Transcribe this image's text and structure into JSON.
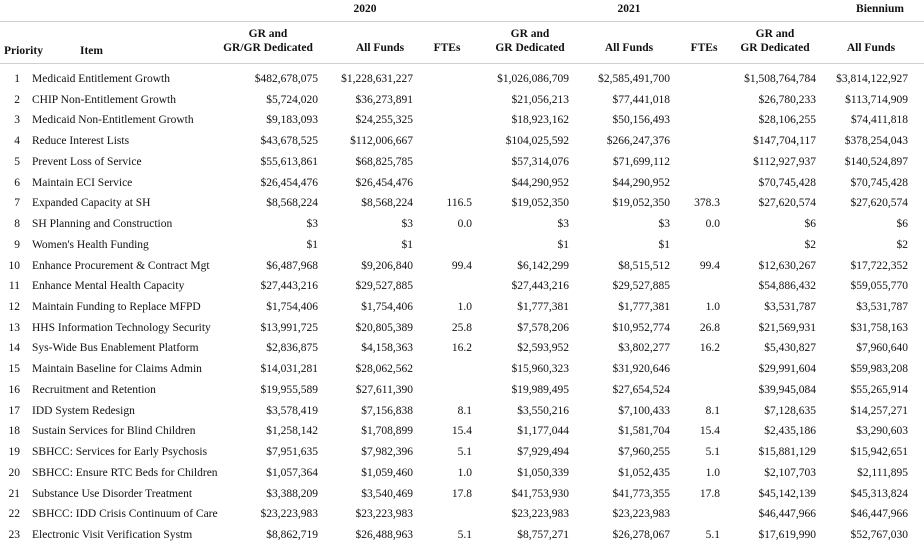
{
  "header": {
    "groups": [
      "2020",
      "2021",
      "Biennium"
    ],
    "priority": "Priority",
    "item": "Item",
    "columns": [
      [
        "GR and",
        "GR/GR Dedicated"
      ],
      [
        "All Funds"
      ],
      [
        "FTEs"
      ],
      [
        "GR and",
        "GR Dedicated"
      ],
      [
        "All Funds"
      ],
      [
        "FTEs"
      ],
      [
        "GR and",
        "GR Dedicated"
      ],
      [
        "All Funds"
      ]
    ]
  },
  "rows": [
    {
      "priority": 1,
      "item": "Medicaid Entitlement Growth",
      "values": [
        "$482,678,075",
        "$1,228,631,227",
        null,
        "$1,026,086,709",
        "$2,585,491,700",
        null,
        "$1,508,764,784",
        "$3,814,122,927"
      ]
    },
    {
      "priority": 2,
      "item": "CHIP Non-Entitlement Growth",
      "values": [
        "$5,724,020",
        "$36,273,891",
        null,
        "$21,056,213",
        "$77,441,018",
        null,
        "$26,780,233",
        "$113,714,909"
      ]
    },
    {
      "priority": 3,
      "item": "Medicaid Non-Entitlement Growth",
      "values": [
        "$9,183,093",
        "$24,255,325",
        null,
        "$18,923,162",
        "$50,156,493",
        null,
        "$28,106,255",
        "$74,411,818"
      ]
    },
    {
      "priority": 4,
      "item": "Reduce Interest Lists",
      "values": [
        "$43,678,525",
        "$112,006,667",
        null,
        "$104,025,592",
        "$266,247,376",
        null,
        "$147,704,117",
        "$378,254,043"
      ]
    },
    {
      "priority": 5,
      "item": "Prevent Loss of Service",
      "values": [
        "$55,613,861",
        "$68,825,785",
        null,
        "$57,314,076",
        "$71,699,112",
        null,
        "$112,927,937",
        "$140,524,897"
      ]
    },
    {
      "priority": 6,
      "item": "Maintain ECI Service",
      "values": [
        "$26,454,476",
        "$26,454,476",
        null,
        "$44,290,952",
        "$44,290,952",
        null,
        "$70,745,428",
        "$70,745,428"
      ]
    },
    {
      "priority": 7,
      "item": "Expanded Capacity at SH",
      "values": [
        "$8,568,224",
        "$8,568,224",
        "116.5",
        "$19,052,350",
        "$19,052,350",
        "378.3",
        "$27,620,574",
        "$27,620,574"
      ]
    },
    {
      "priority": 8,
      "item": "SH Planning and Construction",
      "values": [
        "$3",
        "$3",
        "0.0",
        "$3",
        "$3",
        "0.0",
        "$6",
        "$6"
      ]
    },
    {
      "priority": 9,
      "item": "Women's Health Funding",
      "values": [
        "$1",
        "$1",
        null,
        "$1",
        "$1",
        null,
        "$2",
        "$2"
      ]
    },
    {
      "priority": 10,
      "item": "Enhance Procurement & Contract Mgt",
      "values": [
        "$6,487,968",
        "$9,206,840",
        "99.4",
        "$6,142,299",
        "$8,515,512",
        "99.4",
        "$12,630,267",
        "$17,722,352"
      ]
    },
    {
      "priority": 11,
      "item": "Enhance Mental Health Capacity",
      "values": [
        "$27,443,216",
        "$29,527,885",
        null,
        "$27,443,216",
        "$29,527,885",
        null,
        "$54,886,432",
        "$59,055,770"
      ]
    },
    {
      "priority": 12,
      "item": "Maintain Funding to Replace MFPD",
      "values": [
        "$1,754,406",
        "$1,754,406",
        "1.0",
        "$1,777,381",
        "$1,777,381",
        "1.0",
        "$3,531,787",
        "$3,531,787"
      ]
    },
    {
      "priority": 13,
      "item": "HHS Information Technology Security",
      "values": [
        "$13,991,725",
        "$20,805,389",
        "25.8",
        "$7,578,206",
        "$10,952,774",
        "26.8",
        "$21,569,931",
        "$31,758,163"
      ]
    },
    {
      "priority": 14,
      "item": "Sys-Wide Bus Enablement Platform",
      "values": [
        "$2,836,875",
        "$4,158,363",
        "16.2",
        "$2,593,952",
        "$3,802,277",
        "16.2",
        "$5,430,827",
        "$7,960,640"
      ]
    },
    {
      "priority": 15,
      "item": "Maintain Baseline for Claims Admin",
      "values": [
        "$14,031,281",
        "$28,062,562",
        null,
        "$15,960,323",
        "$31,920,646",
        null,
        "$29,991,604",
        "$59,983,208"
      ]
    },
    {
      "priority": 16,
      "item": "Recruitment and Retention",
      "values": [
        "$19,955,589",
        "$27,611,390",
        null,
        "$19,989,495",
        "$27,654,524",
        null,
        "$39,945,084",
        "$55,265,914"
      ]
    },
    {
      "priority": 17,
      "item": "IDD System Redesign",
      "values": [
        "$3,578,419",
        "$7,156,838",
        "8.1",
        "$3,550,216",
        "$7,100,433",
        "8.1",
        "$7,128,635",
        "$14,257,271"
      ]
    },
    {
      "priority": 18,
      "item": "Sustain Services for Blind Children",
      "values": [
        "$1,258,142",
        "$1,708,899",
        "15.4",
        "$1,177,044",
        "$1,581,704",
        "15.4",
        "$2,435,186",
        "$3,290,603"
      ]
    },
    {
      "priority": 19,
      "item": "SBHCC: Services for Early Psychosis",
      "values": [
        "$7,951,635",
        "$7,982,396",
        "5.1",
        "$7,929,494",
        "$7,960,255",
        "5.1",
        "$15,881,129",
        "$15,942,651"
      ]
    },
    {
      "priority": 20,
      "item": "SBHCC: Ensure RTC Beds for Children",
      "values": [
        "$1,057,364",
        "$1,059,460",
        "1.0",
        "$1,050,339",
        "$1,052,435",
        "1.0",
        "$2,107,703",
        "$2,111,895"
      ]
    },
    {
      "priority": 21,
      "item": "Substance Use Disorder Treatment",
      "values": [
        "$3,388,209",
        "$3,540,469",
        "17.8",
        "$41,753,930",
        "$41,773,355",
        "17.8",
        "$45,142,139",
        "$45,313,824"
      ]
    },
    {
      "priority": 22,
      "item": "SBHCC: IDD Crisis Continuum of Care",
      "values": [
        "$23,223,983",
        "$23,223,983",
        null,
        "$23,223,983",
        "$23,223,983",
        null,
        "$46,447,966",
        "$46,447,966"
      ]
    },
    {
      "priority": 23,
      "item": "Electronic Visit Verification Systm",
      "values": [
        "$8,862,719",
        "$26,488,963",
        "5.1",
        "$8,757,271",
        "$26,278,067",
        "5.1",
        "$17,619,990",
        "$52,767,030"
      ]
    }
  ]
}
